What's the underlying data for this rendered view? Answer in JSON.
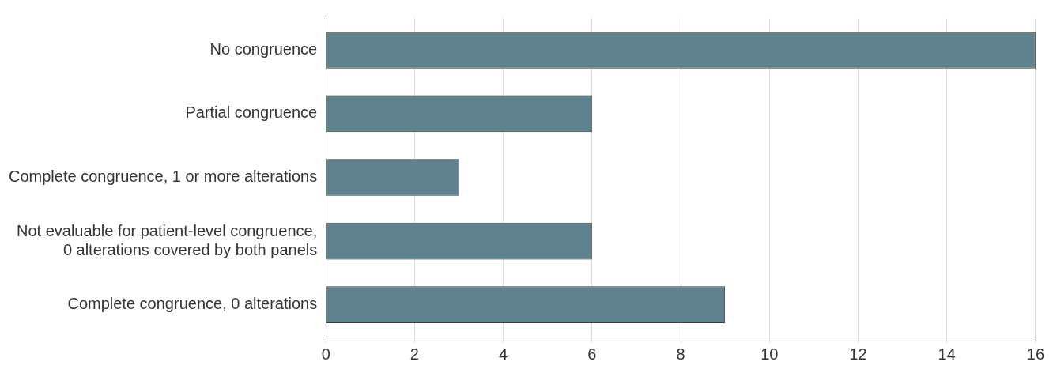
{
  "chart_data": {
    "type": "bar",
    "orientation": "horizontal",
    "categories": [
      "No congruence",
      "Partial congruence",
      "Complete congruence, 1 or more alterations",
      "Not evaluable for patient-level congruence,\n0 alterations covered by both panels",
      "Complete congruence, 0 alterations"
    ],
    "values": [
      16,
      6,
      3,
      6,
      9
    ],
    "color": "#5f828e",
    "xlim": [
      0,
      16
    ],
    "xticks": [
      0,
      2,
      4,
      6,
      8,
      10,
      12,
      14,
      16
    ],
    "grid": "x"
  }
}
